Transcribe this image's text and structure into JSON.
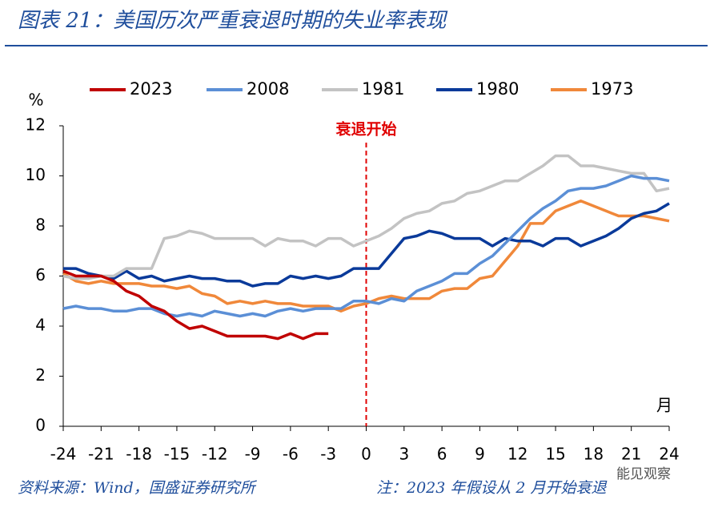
{
  "chart_data": {
    "type": "line",
    "title": "图表 21：美国历次严重衰退时期的失业率表现",
    "y_label": "%",
    "x_label": "月",
    "annotation": {
      "text": "衰退开始",
      "x": 0
    },
    "source": "资料来源：Wind，国盛证券研究所",
    "note": "注：2023 年假设从 2 月开始衰退",
    "watermark": "能见观察",
    "x": [
      -24,
      -23,
      -22,
      -21,
      -20,
      -19,
      -18,
      -17,
      -16,
      -15,
      -14,
      -13,
      -12,
      -11,
      -10,
      -9,
      -8,
      -7,
      -6,
      -5,
      -4,
      -3,
      -2,
      -1,
      0,
      1,
      2,
      3,
      4,
      5,
      6,
      7,
      8,
      9,
      10,
      11,
      12,
      13,
      14,
      15,
      16,
      17,
      18,
      19,
      20,
      21,
      22,
      23,
      24
    ],
    "xlim": [
      -24,
      24
    ],
    "xticks": [
      -24,
      -21,
      -18,
      -15,
      -12,
      -9,
      -6,
      -3,
      0,
      3,
      6,
      9,
      12,
      15,
      18,
      21,
      24
    ],
    "ylim": [
      0,
      12
    ],
    "yticks": [
      0,
      2,
      4,
      6,
      8,
      10,
      12
    ],
    "grid": false,
    "series": [
      {
        "name": "2023",
        "color": "#c00000",
        "values": [
          6.2,
          6.0,
          6.0,
          6.0,
          5.8,
          5.4,
          5.2,
          4.8,
          4.6,
          4.2,
          3.9,
          4.0,
          3.8,
          3.6,
          3.6,
          3.6,
          3.6,
          3.5,
          3.7,
          3.5,
          3.7,
          3.7,
          null,
          null,
          null,
          null,
          null,
          null,
          null,
          null,
          null,
          null,
          null,
          null,
          null,
          null,
          null,
          null,
          null,
          null,
          null,
          null,
          null,
          null,
          null,
          null,
          null,
          null,
          null
        ]
      },
      {
        "name": "2008",
        "color": "#5b8fd6",
        "values": [
          4.7,
          4.8,
          4.7,
          4.7,
          4.6,
          4.6,
          4.7,
          4.7,
          4.5,
          4.4,
          4.5,
          4.4,
          4.6,
          4.5,
          4.4,
          4.5,
          4.4,
          4.6,
          4.7,
          4.6,
          4.7,
          4.7,
          4.7,
          5.0,
          5.0,
          4.9,
          5.1,
          5.0,
          5.4,
          5.6,
          5.8,
          6.1,
          6.1,
          6.5,
          6.8,
          7.3,
          7.8,
          8.3,
          8.7,
          9.0,
          9.4,
          9.5,
          9.5,
          9.6,
          9.8,
          10.0,
          9.9,
          9.9,
          9.8
        ]
      },
      {
        "name": "1981",
        "color": "#c3c3c3",
        "values": [
          6.0,
          5.9,
          5.9,
          6.0,
          6.0,
          6.3,
          6.3,
          6.3,
          7.5,
          7.6,
          7.8,
          7.7,
          7.5,
          7.5,
          7.5,
          7.5,
          7.2,
          7.5,
          7.4,
          7.4,
          7.2,
          7.5,
          7.5,
          7.2,
          7.4,
          7.6,
          7.9,
          8.3,
          8.5,
          8.6,
          8.9,
          9.0,
          9.3,
          9.4,
          9.6,
          9.8,
          9.8,
          10.1,
          10.4,
          10.8,
          10.8,
          10.4,
          10.4,
          10.3,
          10.2,
          10.1,
          10.1,
          9.4,
          9.5
        ]
      },
      {
        "name": "1980",
        "color": "#0a3a9a",
        "values": [
          6.3,
          6.3,
          6.1,
          6.0,
          5.9,
          6.2,
          5.9,
          6.0,
          5.8,
          5.9,
          6.0,
          5.9,
          5.9,
          5.8,
          5.8,
          5.6,
          5.7,
          5.7,
          6.0,
          5.9,
          6.0,
          5.9,
          6.0,
          6.3,
          6.3,
          6.3,
          6.9,
          7.5,
          7.6,
          7.8,
          7.7,
          7.5,
          7.5,
          7.5,
          7.2,
          7.5,
          7.4,
          7.4,
          7.2,
          7.5,
          7.5,
          7.2,
          7.4,
          7.6,
          7.9,
          8.3,
          8.5,
          8.6,
          8.9
        ]
      },
      {
        "name": "1973",
        "color": "#f0883a",
        "values": [
          6.1,
          5.8,
          5.7,
          5.8,
          5.7,
          5.7,
          5.7,
          5.6,
          5.6,
          5.5,
          5.6,
          5.3,
          5.2,
          4.9,
          5.0,
          4.9,
          5.0,
          4.9,
          4.9,
          4.8,
          4.8,
          4.8,
          4.6,
          4.8,
          4.9,
          5.1,
          5.2,
          5.1,
          5.1,
          5.1,
          5.4,
          5.5,
          5.5,
          5.9,
          6.0,
          6.6,
          7.2,
          8.1,
          8.1,
          8.6,
          8.8,
          9.0,
          8.8,
          8.6,
          8.4,
          8.4,
          8.4,
          8.3,
          8.2
        ]
      }
    ]
  }
}
